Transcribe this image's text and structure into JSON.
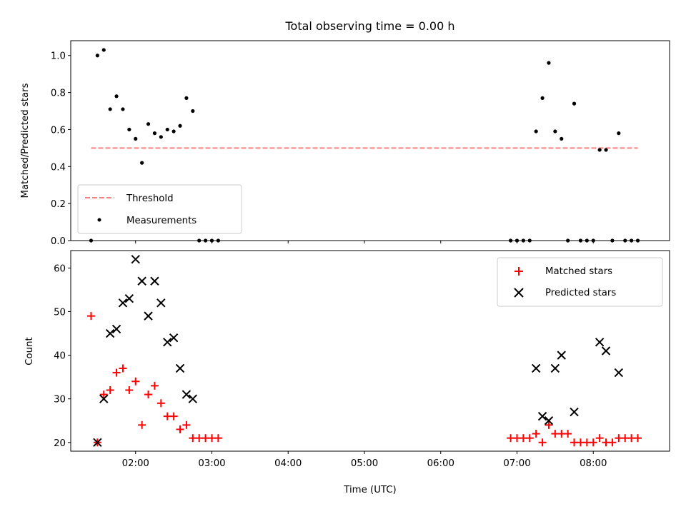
{
  "chart_data": [
    {
      "type": "scatter",
      "title": "Total observing time = 0.00 h",
      "xlabel": "",
      "ylabel": "Matched/Predicted stars",
      "ylim": [
        0,
        1.08
      ],
      "yticks": [
        "0.0",
        "0.2",
        "0.4",
        "0.6",
        "0.8",
        "1.0"
      ],
      "xlim": [
        "01:09",
        "09:00"
      ],
      "legend_position": "lower-left",
      "threshold": {
        "name": "Threshold",
        "value": 0.5,
        "x": [
          "01:25",
          "08:35"
        ],
        "color": "#ff8080"
      },
      "series": [
        {
          "name": "Measurements",
          "color": "#000000",
          "points": [
            [
              "01:25",
              0.0
            ],
            [
              "01:30",
              1.0
            ],
            [
              "01:35",
              1.03
            ],
            [
              "01:40",
              0.71
            ],
            [
              "01:45",
              0.78
            ],
            [
              "01:50",
              0.71
            ],
            [
              "01:55",
              0.6
            ],
            [
              "02:00",
              0.55
            ],
            [
              "02:05",
              0.42
            ],
            [
              "02:10",
              0.63
            ],
            [
              "02:15",
              0.58
            ],
            [
              "02:20",
              0.56
            ],
            [
              "02:25",
              0.6
            ],
            [
              "02:30",
              0.59
            ],
            [
              "02:35",
              0.62
            ],
            [
              "02:40",
              0.77
            ],
            [
              "02:45",
              0.7
            ],
            [
              "02:50",
              0.0
            ],
            [
              "02:55",
              0.0
            ],
            [
              "03:00",
              0.0
            ],
            [
              "03:05",
              0.0
            ],
            [
              "06:55",
              0.0
            ],
            [
              "07:00",
              0.0
            ],
            [
              "07:05",
              0.0
            ],
            [
              "07:10",
              0.0
            ],
            [
              "07:15",
              0.59
            ],
            [
              "07:20",
              0.77
            ],
            [
              "07:25",
              0.96
            ],
            [
              "07:30",
              0.59
            ],
            [
              "07:35",
              0.55
            ],
            [
              "07:40",
              0.0
            ],
            [
              "07:45",
              0.74
            ],
            [
              "07:50",
              0.0
            ],
            [
              "07:55",
              0.0
            ],
            [
              "08:00",
              0.0
            ],
            [
              "08:05",
              0.49
            ],
            [
              "08:10",
              0.49
            ],
            [
              "08:15",
              0.0
            ],
            [
              "08:20",
              0.58
            ],
            [
              "08:25",
              0.0
            ],
            [
              "08:30",
              0.0
            ],
            [
              "08:35",
              0.0
            ]
          ]
        }
      ]
    },
    {
      "type": "scatter",
      "title": "",
      "xlabel": "Time (UTC)",
      "ylabel": "Count",
      "ylim": [
        18,
        64
      ],
      "yticks": [
        "20",
        "30",
        "40",
        "50",
        "60"
      ],
      "xlim": [
        "01:09",
        "09:00"
      ],
      "xticks": [
        "02:00",
        "03:00",
        "04:00",
        "05:00",
        "06:00",
        "07:00",
        "08:00"
      ],
      "legend_position": "top-right",
      "series": [
        {
          "name": "Matched stars",
          "color": "#ff0000",
          "marker": "plus",
          "points": [
            [
              "01:25",
              49
            ],
            [
              "01:30",
              20
            ],
            [
              "01:35",
              31
            ],
            [
              "01:40",
              32
            ],
            [
              "01:45",
              36
            ],
            [
              "01:50",
              37
            ],
            [
              "01:55",
              32
            ],
            [
              "02:00",
              34
            ],
            [
              "02:05",
              24
            ],
            [
              "02:10",
              31
            ],
            [
              "02:15",
              33
            ],
            [
              "02:20",
              29
            ],
            [
              "02:25",
              26
            ],
            [
              "02:30",
              26
            ],
            [
              "02:35",
              23
            ],
            [
              "02:40",
              24
            ],
            [
              "02:45",
              21
            ],
            [
              "02:50",
              21
            ],
            [
              "02:55",
              21
            ],
            [
              "03:00",
              21
            ],
            [
              "03:05",
              21
            ],
            [
              "06:55",
              21
            ],
            [
              "07:00",
              21
            ],
            [
              "07:05",
              21
            ],
            [
              "07:10",
              21
            ],
            [
              "07:15",
              22
            ],
            [
              "07:20",
              20
            ],
            [
              "07:25",
              24
            ],
            [
              "07:30",
              22
            ],
            [
              "07:35",
              22
            ],
            [
              "07:40",
              22
            ],
            [
              "07:45",
              20
            ],
            [
              "07:50",
              20
            ],
            [
              "07:55",
              20
            ],
            [
              "08:00",
              20
            ],
            [
              "08:05",
              21
            ],
            [
              "08:10",
              20
            ],
            [
              "08:15",
              20
            ],
            [
              "08:20",
              21
            ],
            [
              "08:25",
              21
            ],
            [
              "08:30",
              21
            ],
            [
              "08:35",
              21
            ]
          ]
        },
        {
          "name": "Predicted stars",
          "color": "#000000",
          "marker": "x",
          "points": [
            [
              "01:30",
              20
            ],
            [
              "01:35",
              30
            ],
            [
              "01:40",
              45
            ],
            [
              "01:45",
              46
            ],
            [
              "01:50",
              52
            ],
            [
              "01:55",
              53
            ],
            [
              "02:00",
              62
            ],
            [
              "02:05",
              57
            ],
            [
              "02:10",
              49
            ],
            [
              "02:15",
              57
            ],
            [
              "02:20",
              52
            ],
            [
              "02:25",
              43
            ],
            [
              "02:30",
              44
            ],
            [
              "02:35",
              37
            ],
            [
              "02:40",
              31
            ],
            [
              "02:45",
              30
            ],
            [
              "07:15",
              37
            ],
            [
              "07:20",
              26
            ],
            [
              "07:25",
              25
            ],
            [
              "07:30",
              37
            ],
            [
              "07:35",
              40
            ],
            [
              "07:45",
              27
            ],
            [
              "08:05",
              43
            ],
            [
              "08:10",
              41
            ],
            [
              "08:20",
              36
            ]
          ]
        }
      ]
    }
  ]
}
